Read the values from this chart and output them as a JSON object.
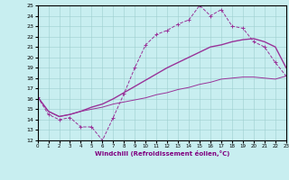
{
  "bg_color": "#c8eef0",
  "line_color": "#993399",
  "xlabel": "Windchill (Refroidissement éolien,°C)",
  "xlim": [
    0,
    23
  ],
  "ylim": [
    12,
    25
  ],
  "xticks": [
    0,
    1,
    2,
    3,
    4,
    5,
    6,
    7,
    8,
    9,
    10,
    11,
    12,
    13,
    14,
    15,
    16,
    17,
    18,
    19,
    20,
    21,
    22,
    23
  ],
  "yticks": [
    12,
    13,
    14,
    15,
    16,
    17,
    18,
    19,
    20,
    21,
    22,
    23,
    24,
    25
  ],
  "line1_x": [
    0,
    1,
    2,
    3,
    4,
    5,
    6,
    7,
    8,
    9,
    10,
    11,
    12,
    13,
    14,
    15,
    16,
    17,
    18,
    19,
    20,
    21,
    22,
    23
  ],
  "line1_y": [
    16.2,
    14.5,
    14.0,
    14.2,
    13.3,
    13.3,
    12.0,
    14.2,
    16.5,
    19.0,
    21.2,
    22.2,
    22.6,
    23.2,
    23.6,
    25.0,
    24.0,
    24.6,
    23.0,
    22.8,
    21.5,
    21.0,
    19.5,
    18.2
  ],
  "line2_x": [
    0,
    1,
    2,
    3,
    4,
    5,
    6,
    7,
    8,
    9,
    10,
    11,
    12,
    13,
    14,
    15,
    16,
    17,
    18,
    19,
    20,
    21,
    22,
    23
  ],
  "line2_y": [
    16.2,
    14.8,
    14.3,
    14.5,
    14.8,
    15.2,
    15.5,
    16.0,
    16.6,
    17.2,
    17.8,
    18.4,
    19.0,
    19.5,
    20.0,
    20.5,
    21.0,
    21.2,
    21.5,
    21.7,
    21.8,
    21.5,
    21.0,
    19.0
  ],
  "line3_x": [
    0,
    1,
    2,
    3,
    4,
    5,
    6,
    7,
    8,
    9,
    10,
    11,
    12,
    13,
    14,
    15,
    16,
    17,
    18,
    19,
    20,
    21,
    22,
    23
  ],
  "line3_y": [
    16.2,
    14.8,
    14.3,
    14.5,
    14.8,
    15.0,
    15.2,
    15.5,
    15.7,
    15.9,
    16.1,
    16.4,
    16.6,
    16.9,
    17.1,
    17.4,
    17.6,
    17.9,
    18.0,
    18.1,
    18.1,
    18.0,
    17.9,
    18.2
  ]
}
